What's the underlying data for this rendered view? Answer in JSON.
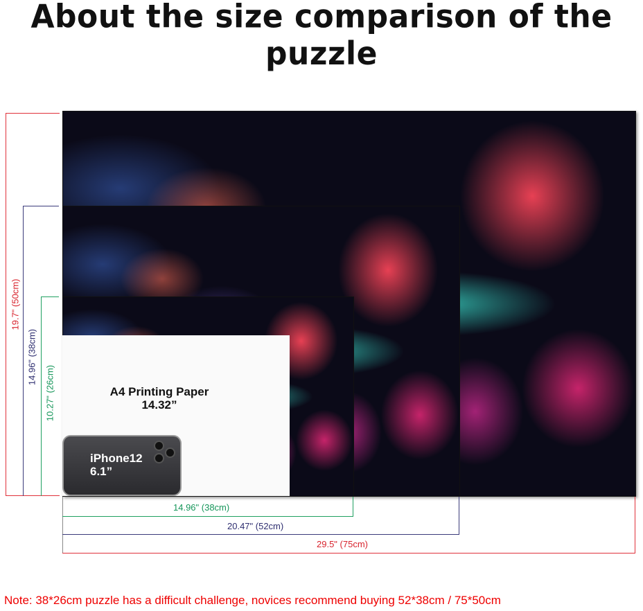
{
  "title": "About the size comparison of the puzzle",
  "puzzles": {
    "large": {
      "width_label": "29.5\" (75cm)",
      "height_label": "19.7\" (50cm)",
      "color": "#d8232d"
    },
    "medium": {
      "width_label": "20.47\" (52cm)",
      "height_label": "14.96\" (38cm)",
      "color": "#2e2e70"
    },
    "small": {
      "width_label": "14.96\" (38cm)",
      "height_label": "10.27\" (26cm)",
      "color": "#16965a"
    }
  },
  "paper": {
    "line1": "A4 Printing Paper",
    "line2": "14.32”"
  },
  "phone": {
    "line1": "iPhone12",
    "line2": "6.1”"
  },
  "note": "Note:  38*26cm puzzle has a difficult challenge, novices recommend buying 52*38cm / 75*50cm"
}
